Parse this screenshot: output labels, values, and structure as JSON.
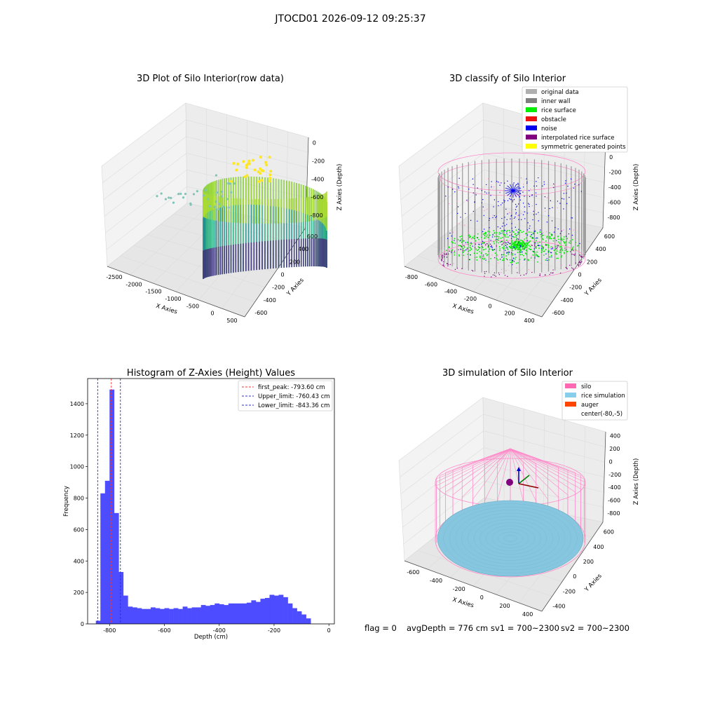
{
  "suptitle": "JTOCD01 2026-09-12 09:25:37",
  "colors": {
    "pane_face": "#f3f3f3",
    "pane_edge": "#d8d8d8",
    "grid": "#dcdcdc",
    "scatter_teal": "#7fc4b6",
    "hist_bar": "#4d4dff",
    "peak_line": "#ff3333",
    "limit_line": "#2d2dcc",
    "silo_pink": "#ff88c8",
    "rice_blue": "#87c6df",
    "auger_orange": "#ff4500"
  },
  "panels": {
    "raw": {
      "title": "3D Plot of Silo Interior(row data)",
      "xlabel": "X Axies",
      "ylabel": "Y Axies",
      "zlabel": "Z Axies (Depth)",
      "x_ticks": [
        "-2500",
        "-2000",
        "-1500",
        "-1000",
        "-500",
        "0",
        "500"
      ],
      "y_ticks": [
        "-600",
        "-400",
        "-200",
        "0",
        "200",
        "400",
        "600"
      ],
      "z_ticks": [
        "0",
        "-200",
        "-400",
        "-600",
        "-800"
      ]
    },
    "classify": {
      "title": "3D classify of Silo Interior",
      "xlabel": "X Axies",
      "ylabel": "Y Axies",
      "zlabel": "Z Axies (Depth)",
      "x_ticks": [
        "-800",
        "-600",
        "-400",
        "-200",
        "0",
        "200",
        "400"
      ],
      "y_ticks": [
        "-600",
        "-400",
        "-200",
        "0",
        "200",
        "400",
        "600"
      ],
      "z_ticks": [
        "200",
        "0",
        "-200",
        "-400",
        "-600",
        "-800"
      ],
      "legend": [
        {
          "label": "original data",
          "color": "#b0b0b0"
        },
        {
          "label": "inner wall",
          "color": "#808080"
        },
        {
          "label": "rice surface",
          "color": "#00ee00"
        },
        {
          "label": "obstacle",
          "color": "#ee1111"
        },
        {
          "label": "noise",
          "color": "#0000ee"
        },
        {
          "label": "interpolated rice surface",
          "color": "#800080"
        },
        {
          "label": "symmetric generated points",
          "color": "#ffff00"
        }
      ]
    },
    "sim": {
      "title": "3D simulation of Silo Interior",
      "xlabel": "X Axies",
      "ylabel": "Y Axies",
      "zlabel": "Z Axies (Depth)",
      "x_ticks": [
        "-600",
        "-400",
        "-200",
        "0",
        "200",
        "400"
      ],
      "y_ticks": [
        "-400",
        "-200",
        "0",
        "200",
        "400",
        "600"
      ],
      "z_ticks": [
        "400",
        "200",
        "0",
        "-200",
        "-400",
        "-600",
        "-800"
      ],
      "legend": [
        {
          "label": "silo",
          "color": "#ff69b4"
        },
        {
          "label": "rice simulation",
          "color": "#87ceeb"
        },
        {
          "label": "auger",
          "color": "#ff4500"
        },
        {
          "label": "center(-80,-5)",
          "color": ""
        }
      ]
    }
  },
  "status": {
    "flag": "flag = 0",
    "avg_depth": "avgDepth = 776 cm",
    "sv1": "sv1 = 700~2300",
    "sv2": "sv2 = 700~2300"
  },
  "chart_data": [
    {
      "type": "scatter",
      "title": "3D Plot of Silo Interior(row data)",
      "xlabel": "X Axies",
      "ylabel": "Y Axies",
      "zlabel": "Z Axies (Depth)",
      "xlim": [
        -2700,
        600
      ],
      "ylim": [
        -650,
        650
      ],
      "zlim": [
        -900,
        0
      ],
      "colormap": "viridis"
    },
    {
      "type": "scatter",
      "title": "3D classify of Silo Interior",
      "xlabel": "X Axies",
      "ylabel": "Y Axies",
      "zlabel": "Z Axies (Depth)",
      "xlim": [
        -850,
        550
      ],
      "ylim": [
        -650,
        650
      ],
      "zlim": [
        -900,
        250
      ],
      "legend_position": "top-right"
    },
    {
      "type": "bar",
      "title": "Histogram of Z-Axies (Height) Values",
      "xlabel": "Depth (cm)",
      "ylabel": "Frequency",
      "xlim": [
        -880,
        20
      ],
      "ylim": [
        0,
        1560
      ],
      "x_ticks": [
        "-800",
        "-600",
        "-400",
        "-200",
        "0"
      ],
      "y_ticks": [
        "0",
        "200",
        "400",
        "600",
        "800",
        "1000",
        "1200",
        "1400"
      ],
      "bin_start": -850,
      "bin_width": 16.67,
      "values": [
        20,
        830,
        910,
        1490,
        705,
        330,
        180,
        110,
        105,
        100,
        95,
        95,
        105,
        100,
        95,
        100,
        95,
        100,
        95,
        110,
        100,
        105,
        105,
        120,
        115,
        120,
        130,
        125,
        120,
        130,
        130,
        130,
        130,
        135,
        150,
        140,
        160,
        165,
        185,
        180,
        185,
        170,
        130,
        100,
        80,
        60,
        35
      ],
      "lines": [
        {
          "label": "first_peak: -793.60 cm",
          "x": -793.6,
          "color": "#ff3333"
        },
        {
          "label": "Upper_limit: -760.43 cm",
          "x": -760.43,
          "color": "#2d2dcc"
        },
        {
          "label": "Lower_limit: -843.36 cm",
          "x": -843.36,
          "color": "#2d2dcc"
        }
      ],
      "legend_position": "top-right"
    },
    {
      "type": "scatter",
      "title": "3D simulation of Silo Interior",
      "xlabel": "X Axies",
      "ylabel": "Y Axies",
      "zlabel": "Z Axies (Depth)",
      "xlim": [
        -700,
        500
      ],
      "ylim": [
        -500,
        650
      ],
      "zlim": [
        -900,
        450
      ],
      "legend_position": "top-right"
    }
  ]
}
